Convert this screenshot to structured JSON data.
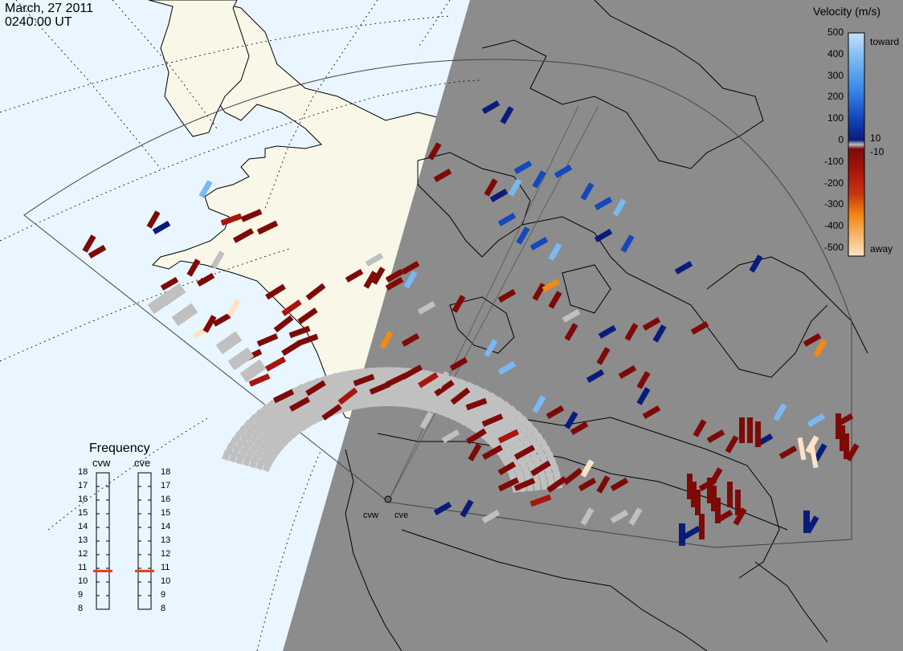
{
  "header": {
    "date": "March, 27 2011",
    "time": "0240:00 UT"
  },
  "velocity_scale": {
    "title": "Velocity (m/s)",
    "ticks": [
      "500",
      "400",
      "300",
      "200",
      "100",
      "0",
      "-100",
      "-200",
      "-300",
      "-400",
      "-500"
    ],
    "small_ticks": [
      "10",
      "-10"
    ],
    "toward_label": "toward",
    "away_label": "away",
    "colors": [
      "#fce3c6",
      "#fbb263",
      "#f38a16",
      "#e1590c",
      "#c8340e",
      "#a8150d",
      "#8e0e0a",
      "#7e0a08",
      "#c0c0c0",
      "#0a1c7a",
      "#0e2e9a",
      "#1448bd",
      "#1f66d6",
      "#3b8ae8",
      "#7ab8f2",
      "#c4e2fb"
    ]
  },
  "frequency_panel": {
    "title": "Frequency",
    "radars": [
      {
        "name": "cvw",
        "value": 10.8
      },
      {
        "name": "cve",
        "value": 10.8
      }
    ],
    "ticks": [
      "18",
      "17",
      "16",
      "15",
      "14",
      "13",
      "12",
      "11",
      "10",
      "9",
      "8"
    ],
    "marker_color": "#e0401a"
  },
  "map": {
    "site_labels": [
      "cvw",
      "cve"
    ],
    "night_shading_color": "#8c8c8c",
    "ocean_color": "#e9f6ff",
    "land_color": "#f8f7e8"
  }
}
